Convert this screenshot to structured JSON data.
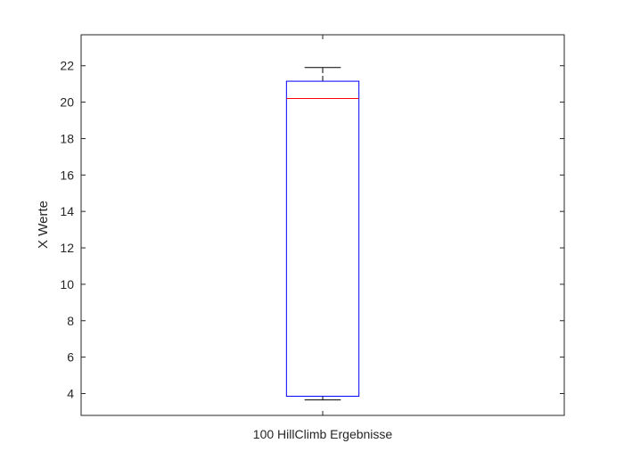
{
  "chart_data": {
    "type": "box",
    "xlabel": "",
    "ylabel": "X Werte",
    "ylim": [
      2.8,
      23.7
    ],
    "yticks": [
      4,
      6,
      8,
      10,
      12,
      14,
      16,
      18,
      20,
      22
    ],
    "categories": [
      "100 HillClimb Ergebnisse"
    ],
    "boxes": [
      {
        "category": "100 HillClimb Ergebnisse",
        "whisker_low": 3.65,
        "q1": 3.85,
        "median": 20.2,
        "q3": 21.15,
        "whisker_high": 21.9
      }
    ],
    "grid": false,
    "colors": {
      "box": "#0000ff",
      "median": "#ff0000",
      "whisker": "#000000",
      "axes": "#262626"
    }
  }
}
